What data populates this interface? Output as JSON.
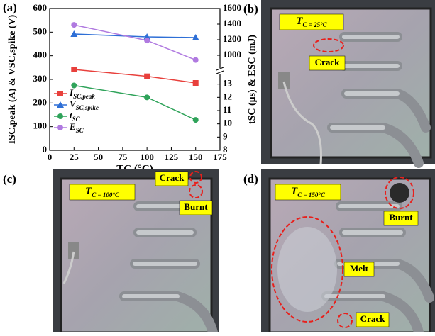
{
  "chart_data": {
    "type": "line",
    "panel_label": "(a)",
    "x_label": "TC (°C)",
    "y_label": "ISC,peak (A) & VSC,spike (V)",
    "y2_label": "tSC (μs) & ESC (mJ)",
    "x": [
      25,
      100,
      150
    ],
    "xlim": [
      0,
      175
    ],
    "xticks": [
      0,
      25,
      50,
      75,
      100,
      125,
      150,
      175
    ],
    "ylim": [
      0,
      600
    ],
    "yticks": [
      0,
      100,
      200,
      300,
      400,
      500,
      600
    ],
    "y2_segments": [
      {
        "lim": [
          8,
          14
        ],
        "ticks": [
          8,
          9,
          10,
          11,
          12,
          13
        ]
      },
      {
        "lim": [
          800,
          1600
        ],
        "ticks": [
          1000,
          1200,
          1400,
          1600
        ]
      }
    ],
    "series": [
      {
        "name": "ISC,peak",
        "color": "#e8403c",
        "marker": "square",
        "values": [
          342,
          313,
          285
        ]
      },
      {
        "name": "VSC,spike",
        "color": "#2e6fd6",
        "marker": "triangle",
        "values": [
          492,
          480,
          477
        ]
      },
      {
        "name": "tSC",
        "color": "#2fa35a",
        "marker": "circle",
        "axis": "y2",
        "y2_segment": 0,
        "values": [
          12.9,
          12.0,
          10.3
        ]
      },
      {
        "name": "ESC",
        "color": "#b07ae0",
        "marker": "circle",
        "axis": "y2",
        "y2_segment": 1,
        "values": [
          1390,
          1190,
          940
        ]
      }
    ]
  },
  "photos": [
    {
      "panel_label": "(b)",
      "condition": "TC = 25°C",
      "labels": [
        "Crack"
      ]
    },
    {
      "panel_label": "(c)",
      "condition": "TC = 100°C",
      "labels": [
        "Crack",
        "Burnt"
      ]
    },
    {
      "panel_label": "(d)",
      "condition": "TC = 150°C",
      "labels": [
        "Burnt",
        "Melt",
        "Crack"
      ]
    }
  ]
}
